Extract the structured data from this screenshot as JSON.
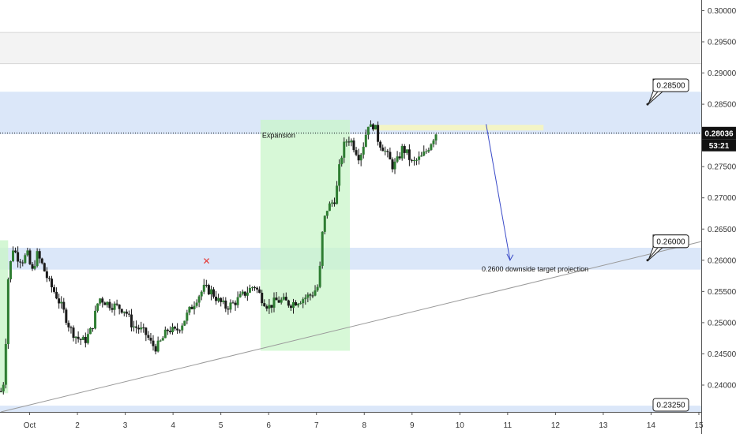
{
  "chart_data": {
    "type": "candlestick",
    "x_ticks": [
      "Oct",
      "2",
      "3",
      "4",
      "5",
      "6",
      "7",
      "8",
      "9",
      "10",
      "11",
      "12",
      "13",
      "14",
      "15"
    ],
    "x_tick_days": [
      1,
      2,
      3,
      4,
      5,
      6,
      7,
      8,
      9,
      10,
      11,
      12,
      13,
      14,
      15
    ],
    "y_ticks": [
      "0.30000",
      "0.29500",
      "0.29000",
      "0.28500",
      "0.28000",
      "0.27500",
      "0.27000",
      "0.26500",
      "0.26000",
      "0.25500",
      "0.25000",
      "0.24500",
      "0.24000"
    ],
    "ylim": [
      0.2357,
      0.3017
    ],
    "xlim": [
      0.38,
      15.05
    ],
    "current_price": {
      "label": "0.28036",
      "value": 0.28036,
      "countdown": "53:21"
    },
    "price_path": [
      [
        0.4,
        0.239
      ],
      [
        0.47,
        0.241
      ],
      [
        0.55,
        0.257
      ],
      [
        0.65,
        0.262
      ],
      [
        0.75,
        0.2605
      ],
      [
        0.85,
        0.26
      ],
      [
        0.95,
        0.261
      ],
      [
        1.05,
        0.258
      ],
      [
        1.15,
        0.261
      ],
      [
        1.25,
        0.2595
      ],
      [
        1.4,
        0.2565
      ],
      [
        1.55,
        0.2545
      ],
      [
        1.7,
        0.252
      ],
      [
        1.85,
        0.249
      ],
      [
        2.0,
        0.2475
      ],
      [
        2.15,
        0.247
      ],
      [
        2.3,
        0.249
      ],
      [
        2.45,
        0.254
      ],
      [
        2.65,
        0.253
      ],
      [
        2.85,
        0.2525
      ],
      [
        3.0,
        0.252
      ],
      [
        3.15,
        0.2495
      ],
      [
        3.3,
        0.249
      ],
      [
        3.45,
        0.248
      ],
      [
        3.55,
        0.2465
      ],
      [
        3.65,
        0.246
      ],
      [
        3.75,
        0.247
      ],
      [
        3.9,
        0.249
      ],
      [
        4.05,
        0.2485
      ],
      [
        4.2,
        0.25
      ],
      [
        4.35,
        0.252
      ],
      [
        4.5,
        0.254
      ],
      [
        4.65,
        0.2555
      ],
      [
        4.8,
        0.255
      ],
      [
        4.95,
        0.2535
      ],
      [
        5.1,
        0.2525
      ],
      [
        5.25,
        0.253
      ],
      [
        5.4,
        0.254
      ],
      [
        5.55,
        0.255
      ],
      [
        5.7,
        0.256
      ],
      [
        5.85,
        0.254
      ],
      [
        6.0,
        0.2525
      ],
      [
        6.15,
        0.2535
      ],
      [
        6.3,
        0.2535
      ],
      [
        6.45,
        0.253
      ],
      [
        6.6,
        0.2535
      ],
      [
        6.75,
        0.254
      ],
      [
        6.9,
        0.2545
      ],
      [
        7.05,
        0.256
      ],
      [
        7.12,
        0.264
      ],
      [
        7.2,
        0.268
      ],
      [
        7.3,
        0.269
      ],
      [
        7.4,
        0.27
      ],
      [
        7.5,
        0.276
      ],
      [
        7.6,
        0.279
      ],
      [
        7.7,
        0.2795
      ],
      [
        7.8,
        0.278
      ],
      [
        7.9,
        0.2765
      ],
      [
        8.0,
        0.279
      ],
      [
        8.08,
        0.282
      ],
      [
        8.15,
        0.281
      ],
      [
        8.2,
        0.282
      ],
      [
        8.3,
        0.279
      ],
      [
        8.4,
        0.278
      ],
      [
        8.5,
        0.2765
      ],
      [
        8.6,
        0.275
      ],
      [
        8.7,
        0.276
      ],
      [
        8.8,
        0.278
      ],
      [
        8.9,
        0.277
      ],
      [
        9.0,
        0.2755
      ],
      [
        9.1,
        0.276
      ],
      [
        9.2,
        0.2765
      ],
      [
        9.3,
        0.2775
      ],
      [
        9.4,
        0.279
      ],
      [
        9.5,
        0.2804
      ]
    ],
    "zones": [
      {
        "name": "upper-grey-zone",
        "y": [
          0.2915,
          0.2965
        ],
        "color": "#f3f3f3"
      },
      {
        "name": "resistance-zone-28500",
        "y": [
          0.2802,
          0.287
        ],
        "color": "#dbe7f9"
      },
      {
        "name": "support-zone-26000",
        "y": [
          0.2585,
          0.262
        ],
        "color": "#dbe7f9"
      },
      {
        "name": "support-zone-23250",
        "y": [
          0.2357,
          0.2367
        ],
        "color": "#dbe7f9"
      }
    ],
    "expansion_box": {
      "label": "Expansion",
      "x": [
        5.83,
        7.7
      ],
      "y": [
        0.2455,
        0.2825
      ],
      "color": "#c9f5c9"
    },
    "left_green_box": {
      "x": [
        0.38,
        0.55
      ],
      "y": [
        0.2387,
        0.2632
      ],
      "color": "#c9f5c9"
    },
    "yellow_box": {
      "x": [
        8.2,
        11.75
      ],
      "y": [
        0.2808,
        0.2817
      ],
      "color": "#f3f4c6"
    },
    "trendline": {
      "from": [
        0.4,
        0.2357
      ],
      "to": [
        15.05,
        0.263
      ],
      "color": "#9a9a9a"
    },
    "projection_arrow": {
      "from": [
        10.55,
        0.2818
      ],
      "to": [
        11.05,
        0.26
      ],
      "color": "#3b4bc8"
    },
    "projection_text": "0.2600 downside target projection",
    "x_marker": {
      "x": 4.7,
      "y": 0.26,
      "color": "#e53935",
      "glyph": "✕"
    },
    "callouts": [
      {
        "label": "0.28500",
        "y": 0.285
      },
      {
        "label": "0.26000",
        "y": 0.26
      },
      {
        "label": "0.23250",
        "y": 0.2365
      }
    ]
  }
}
